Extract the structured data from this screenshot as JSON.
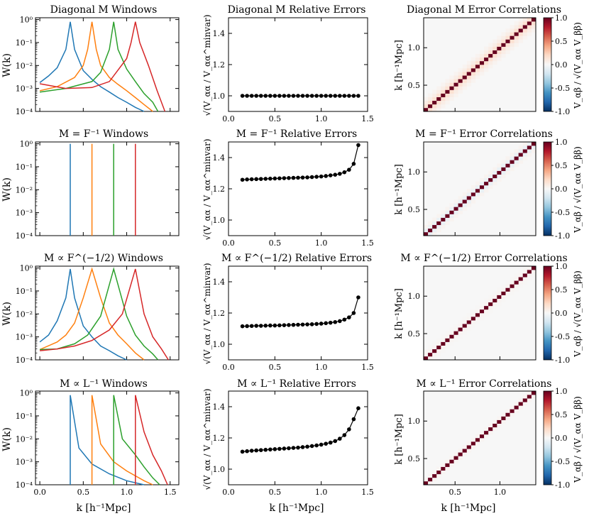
{
  "figure": {
    "shared_xlabel": "k [h⁻¹Mpc]",
    "window_ylabel": "W(k)",
    "error_ylabel": "√(V_αα / V_αα^minvar)",
    "corr_ylabel": "k [h⁻¹Mpc]",
    "colorbar_label": "V_αβ / √(V_αα V_ββ)",
    "series_colors": [
      "#1f77b4",
      "#ff7f0e",
      "#2ca02c",
      "#d62728"
    ]
  },
  "rows": [
    {
      "window_title": "Diagonal M Windows",
      "error_title": "Diagonal M Relative Errors",
      "corr_title": "Diagonal M Error Correlations"
    },
    {
      "window_title": "M = F⁻¹ Windows",
      "error_title": "M = F⁻¹ Relative Errors",
      "corr_title": "M = F⁻¹ Error Correlations"
    },
    {
      "window_title": "M ∝ F^(−1/2) Windows",
      "error_title": "M ∝ F^(−1/2) Relative Errors",
      "corr_title": "M ∝ F^(−1/2) Error Correlations"
    },
    {
      "window_title": "M ∝ L⁻¹ Windows",
      "error_title": "M ∝ L⁻¹ Relative Errors",
      "corr_title": "M ∝ L⁻¹ Error Correlations"
    }
  ],
  "chart_data": [
    {
      "type": "line",
      "panel": "windows",
      "yscale": "log",
      "xlim": [
        -0.05,
        1.6
      ],
      "ylim": [
        0.0001,
        1.2
      ],
      "xticks": [
        "0.0",
        "0.5",
        "1.0",
        "1.5"
      ],
      "yticks": [
        "10⁻⁴",
        "10⁻³",
        "10⁻²",
        "10⁻¹",
        "10⁰"
      ],
      "rows": [
        {
          "series": [
            {
              "x": [
                0.0,
                0.1,
                0.2,
                0.3,
                0.35,
                0.4,
                0.5,
                0.6,
                0.7,
                0.8,
                0.9,
                1.0,
                1.1,
                1.2
              ],
              "y": [
                0.0018,
                0.0035,
                0.008,
                0.05,
                0.8,
                0.05,
                0.006,
                0.0025,
                0.0012,
                0.0007,
                0.0004,
                0.00025,
                0.00015,
                0.0001
              ]
            },
            {
              "x": [
                0.0,
                0.2,
                0.4,
                0.5,
                0.55,
                0.6,
                0.65,
                0.7,
                0.8,
                0.9,
                1.0,
                1.1,
                1.2,
                1.3
              ],
              "y": [
                0.0008,
                0.0012,
                0.003,
                0.01,
                0.05,
                0.8,
                0.05,
                0.01,
                0.003,
                0.0015,
                0.0008,
                0.0004,
                0.0002,
                0.0001
              ]
            },
            {
              "x": [
                0.0,
                0.3,
                0.6,
                0.7,
                0.8,
                0.85,
                0.9,
                1.0,
                1.1,
                1.2,
                1.3,
                1.36
              ],
              "y": [
                0.0007,
                0.001,
                0.002,
                0.005,
                0.05,
                0.8,
                0.05,
                0.007,
                0.002,
                0.0006,
                0.00025,
                0.0001
              ]
            },
            {
              "x": [
                0.0,
                0.3,
                0.6,
                0.8,
                1.0,
                1.05,
                1.1,
                1.15,
                1.25,
                1.35,
                1.44
              ],
              "y": [
                0.0016,
                0.001,
                0.0011,
                0.002,
                0.02,
                0.1,
                0.8,
                0.1,
                0.01,
                0.0008,
                0.0001
              ]
            }
          ]
        },
        {
          "series": [
            {
              "x": [
                0.35,
                0.35
              ],
              "y": [
                0.0001,
                1.0
              ]
            },
            {
              "x": [
                0.6,
                0.6
              ],
              "y": [
                0.0001,
                1.0
              ]
            },
            {
              "x": [
                0.85,
                0.85
              ],
              "y": [
                0.0001,
                1.0
              ]
            },
            {
              "x": [
                1.1,
                1.1
              ],
              "y": [
                0.0001,
                1.0
              ]
            }
          ]
        },
        {
          "series": [
            {
              "x": [
                0.0,
                0.1,
                0.2,
                0.3,
                0.35,
                0.4,
                0.5,
                0.6,
                0.7,
                0.8,
                0.9,
                1.0
              ],
              "y": [
                0.0006,
                0.0012,
                0.005,
                0.05,
                0.9,
                0.05,
                0.003,
                0.001,
                0.0004,
                0.00025,
                0.00015,
                0.0001
              ]
            },
            {
              "x": [
                0.0,
                0.2,
                0.3,
                0.4,
                0.5,
                0.6,
                0.7,
                0.8,
                0.9,
                1.0,
                1.1,
                1.2
              ],
              "y": [
                0.00028,
                0.0006,
                0.0012,
                0.004,
                0.05,
                0.9,
                0.05,
                0.004,
                0.0012,
                0.0005,
                0.0002,
                0.0001
              ]
            },
            {
              "x": [
                0.0,
                0.2,
                0.4,
                0.55,
                0.7,
                0.85,
                1.0,
                1.1,
                1.2,
                1.3,
                1.36
              ],
              "y": [
                0.00028,
                0.0003,
                0.0005,
                0.0012,
                0.008,
                0.9,
                0.008,
                0.0012,
                0.0004,
                0.00018,
                0.0001
              ]
            },
            {
              "x": [
                0.0,
                0.2,
                0.4,
                0.6,
                0.8,
                0.95,
                1.1,
                1.2,
                1.3,
                1.4,
                1.48
              ],
              "y": [
                0.00025,
                0.0003,
                0.0004,
                0.0007,
                0.002,
                0.01,
                0.9,
                0.01,
                0.001,
                0.0003,
                0.0001
              ]
            }
          ]
        },
        {
          "series": [
            {
              "x": [
                0.35,
                0.35,
                0.45,
                0.6,
                0.8,
                1.0,
                1.2
              ],
              "y": [
                0.0001,
                0.8,
                0.004,
                0.0008,
                0.0003,
                0.00015,
                0.0001
              ]
            },
            {
              "x": [
                0.6,
                0.6,
                0.7,
                0.85,
                1.0,
                1.2,
                1.3
              ],
              "y": [
                0.0001,
                0.8,
                0.006,
                0.001,
                0.0004,
                0.00015,
                0.0001
              ]
            },
            {
              "x": [
                0.85,
                0.85,
                0.95,
                1.1,
                1.2,
                1.3,
                1.38
              ],
              "y": [
                0.0001,
                0.8,
                0.01,
                0.002,
                0.0006,
                0.0002,
                0.0001
              ]
            },
            {
              "x": [
                1.1,
                1.1,
                1.2,
                1.3,
                1.4,
                1.47
              ],
              "y": [
                0.0001,
                0.8,
                0.02,
                0.002,
                0.0004,
                0.0001
              ]
            }
          ]
        }
      ]
    },
    {
      "type": "line",
      "panel": "relative_errors",
      "marker": "circle",
      "xlim": [
        0.0,
        1.5
      ],
      "ylim": [
        0.9,
        1.5
      ],
      "xticks": [
        "0.0",
        "0.5",
        "1.0",
        "1.5"
      ],
      "yticks": [
        "1.0",
        "1.2",
        "1.4"
      ],
      "x": [
        0.15,
        0.2,
        0.25,
        0.3,
        0.35,
        0.4,
        0.45,
        0.5,
        0.55,
        0.6,
        0.65,
        0.7,
        0.75,
        0.8,
        0.85,
        0.9,
        0.95,
        1.0,
        1.05,
        1.1,
        1.15,
        1.2,
        1.25,
        1.3,
        1.35,
        1.4
      ],
      "rows": [
        {
          "values": [
            1.0,
            1.0,
            1.0,
            1.0,
            1.0,
            1.0,
            1.0,
            1.0,
            1.0,
            1.0,
            1.0,
            1.0,
            1.0,
            1.0,
            1.0,
            1.0,
            1.0,
            1.0,
            1.0,
            1.0,
            1.0,
            1.0,
            1.0,
            1.0,
            1.0,
            1.0
          ]
        },
        {
          "values": [
            1.258,
            1.26,
            1.261,
            1.262,
            1.263,
            1.264,
            1.265,
            1.266,
            1.267,
            1.268,
            1.269,
            1.27,
            1.271,
            1.272,
            1.273,
            1.275,
            1.277,
            1.279,
            1.282,
            1.286,
            1.29,
            1.296,
            1.306,
            1.322,
            1.36,
            1.48
          ]
        },
        {
          "values": [
            1.115,
            1.116,
            1.117,
            1.118,
            1.118,
            1.119,
            1.12,
            1.12,
            1.121,
            1.122,
            1.123,
            1.124,
            1.125,
            1.126,
            1.127,
            1.128,
            1.13,
            1.132,
            1.135,
            1.138,
            1.142,
            1.148,
            1.158,
            1.172,
            1.2,
            1.3
          ]
        },
        {
          "values": [
            1.112,
            1.115,
            1.118,
            1.12,
            1.122,
            1.124,
            1.126,
            1.128,
            1.13,
            1.132,
            1.134,
            1.136,
            1.138,
            1.141,
            1.144,
            1.148,
            1.152,
            1.157,
            1.163,
            1.17,
            1.18,
            1.195,
            1.218,
            1.255,
            1.32,
            1.39
          ]
        }
      ]
    },
    {
      "type": "heatmap",
      "panel": "error_correlations",
      "xlim": [
        0.15,
        1.4
      ],
      "ylim": [
        0.15,
        1.4
      ],
      "xticks": [
        "0.5",
        "1.0"
      ],
      "yticks": [
        "0.5",
        "1.0"
      ],
      "n_bins": 26,
      "colorbar": {
        "min": -1.0,
        "max": 1.0,
        "ticks": [
          "-1.0",
          "-0.5",
          "0.0",
          "0.5",
          "1.0"
        ],
        "colormap": "RdBu_r"
      },
      "rows": [
        {
          "diagonal": 1.0,
          "offdiag": [
            0.15,
            0.07,
            0.03
          ]
        },
        {
          "diagonal": 1.0,
          "offdiag": [
            -0.07,
            0.03,
            0.0
          ]
        },
        {
          "diagonal": 1.0,
          "offdiag": [
            0.02,
            0.01,
            0.0
          ]
        },
        {
          "diagonal": 1.0,
          "offdiag": [
            0.02,
            0.0,
            0.0
          ]
        }
      ]
    }
  ]
}
